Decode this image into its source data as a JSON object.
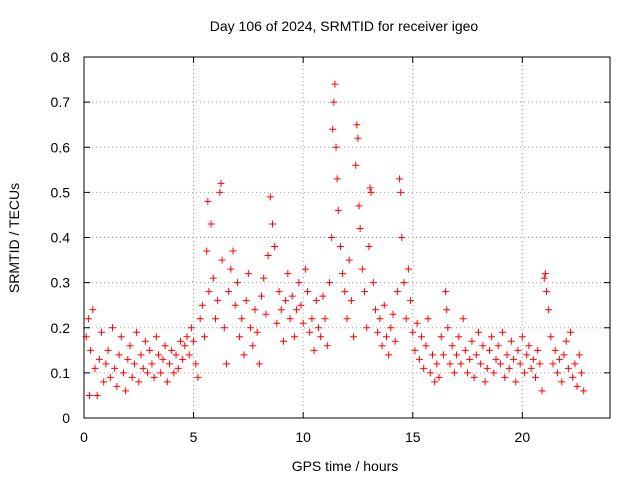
{
  "chart_data": {
    "type": "scatter",
    "title": "Day 106 of 2024, SRMTID for receiver igeo",
    "xlabel": "GPS time / hours",
    "ylabel": "SRMTID / TECUs",
    "xlim": [
      0,
      24
    ],
    "ylim": [
      0,
      0.8
    ],
    "xticks": [
      0,
      5,
      10,
      15,
      20
    ],
    "xtick_labels": [
      "0",
      "5",
      "10",
      "15",
      "20"
    ],
    "yticks": [
      0,
      0.1,
      0.2,
      0.3,
      0.4,
      0.5,
      0.6,
      0.7,
      0.8
    ],
    "ytick_labels": [
      "0",
      "0.1",
      "0.2",
      "0.3",
      "0.4",
      "0.5",
      "0.6",
      "0.7",
      "0.8"
    ],
    "grid": true,
    "marker": "+",
    "color": "#ff0000",
    "series": [
      {
        "name": "SRMTID",
        "points": [
          [
            0.1,
            0.18
          ],
          [
            0.2,
            0.22
          ],
          [
            0.25,
            0.05
          ],
          [
            0.3,
            0.15
          ],
          [
            0.4,
            0.24
          ],
          [
            0.5,
            0.11
          ],
          [
            0.6,
            0.05
          ],
          [
            0.7,
            0.13
          ],
          [
            0.8,
            0.19
          ],
          [
            0.9,
            0.08
          ],
          [
            1.0,
            0.12
          ],
          [
            1.1,
            0.15
          ],
          [
            1.2,
            0.09
          ],
          [
            1.3,
            0.2
          ],
          [
            1.4,
            0.11
          ],
          [
            1.5,
            0.07
          ],
          [
            1.6,
            0.14
          ],
          [
            1.7,
            0.18
          ],
          [
            1.8,
            0.1
          ],
          [
            1.9,
            0.06
          ],
          [
            2.0,
            0.13
          ],
          [
            2.1,
            0.16
          ],
          [
            2.2,
            0.09
          ],
          [
            2.3,
            0.12
          ],
          [
            2.4,
            0.19
          ],
          [
            2.5,
            0.08
          ],
          [
            2.6,
            0.14
          ],
          [
            2.7,
            0.11
          ],
          [
            2.8,
            0.17
          ],
          [
            2.9,
            0.1
          ],
          [
            3.0,
            0.15
          ],
          [
            3.1,
            0.12
          ],
          [
            3.2,
            0.09
          ],
          [
            3.3,
            0.18
          ],
          [
            3.4,
            0.14
          ],
          [
            3.5,
            0.1
          ],
          [
            3.6,
            0.13
          ],
          [
            3.7,
            0.16
          ],
          [
            3.8,
            0.08
          ],
          [
            3.9,
            0.12
          ],
          [
            4.0,
            0.15
          ],
          [
            4.1,
            0.1
          ],
          [
            4.2,
            0.14
          ],
          [
            4.3,
            0.11
          ],
          [
            4.4,
            0.17
          ],
          [
            4.5,
            0.13
          ],
          [
            4.6,
            0.16
          ],
          [
            4.7,
            0.18
          ],
          [
            4.8,
            0.14
          ],
          [
            4.9,
            0.2
          ],
          [
            5.0,
            0.17
          ],
          [
            5.1,
            0.12
          ],
          [
            5.2,
            0.09
          ],
          [
            5.3,
            0.22
          ],
          [
            5.4,
            0.25
          ],
          [
            5.5,
            0.18
          ],
          [
            5.6,
            0.37
          ],
          [
            5.65,
            0.48
          ],
          [
            5.7,
            0.28
          ],
          [
            5.8,
            0.43
          ],
          [
            5.9,
            0.31
          ],
          [
            6.0,
            0.22
          ],
          [
            6.1,
            0.26
          ],
          [
            6.2,
            0.5
          ],
          [
            6.25,
            0.52
          ],
          [
            6.3,
            0.35
          ],
          [
            6.4,
            0.2
          ],
          [
            6.5,
            0.12
          ],
          [
            6.6,
            0.28
          ],
          [
            6.7,
            0.33
          ],
          [
            6.8,
            0.37
          ],
          [
            6.9,
            0.25
          ],
          [
            7.0,
            0.3
          ],
          [
            7.1,
            0.18
          ],
          [
            7.2,
            0.22
          ],
          [
            7.3,
            0.14
          ],
          [
            7.4,
            0.26
          ],
          [
            7.5,
            0.32
          ],
          [
            7.6,
            0.2
          ],
          [
            7.7,
            0.16
          ],
          [
            7.8,
            0.24
          ],
          [
            7.9,
            0.19
          ],
          [
            8.0,
            0.12
          ],
          [
            8.1,
            0.27
          ],
          [
            8.2,
            0.31
          ],
          [
            8.3,
            0.23
          ],
          [
            8.4,
            0.36
          ],
          [
            8.5,
            0.49
          ],
          [
            8.6,
            0.43
          ],
          [
            8.7,
            0.38
          ],
          [
            8.8,
            0.21
          ],
          [
            8.9,
            0.28
          ],
          [
            9.0,
            0.24
          ],
          [
            9.1,
            0.17
          ],
          [
            9.2,
            0.26
          ],
          [
            9.3,
            0.32
          ],
          [
            9.4,
            0.22
          ],
          [
            9.5,
            0.27
          ],
          [
            9.6,
            0.18
          ],
          [
            9.7,
            0.24
          ],
          [
            9.8,
            0.3
          ],
          [
            9.9,
            0.25
          ],
          [
            10.0,
            0.21
          ],
          [
            10.1,
            0.33
          ],
          [
            10.2,
            0.28
          ],
          [
            10.3,
            0.19
          ],
          [
            10.4,
            0.22
          ],
          [
            10.5,
            0.15
          ],
          [
            10.6,
            0.26
          ],
          [
            10.7,
            0.2
          ],
          [
            10.8,
            0.18
          ],
          [
            10.9,
            0.27
          ],
          [
            11.0,
            0.22
          ],
          [
            11.1,
            0.16
          ],
          [
            11.2,
            0.3
          ],
          [
            11.3,
            0.4
          ],
          [
            11.35,
            0.64
          ],
          [
            11.4,
            0.7
          ],
          [
            11.45,
            0.74
          ],
          [
            11.5,
            0.6
          ],
          [
            11.55,
            0.53
          ],
          [
            11.6,
            0.46
          ],
          [
            11.7,
            0.38
          ],
          [
            11.8,
            0.32
          ],
          [
            11.9,
            0.28
          ],
          [
            12.0,
            0.22
          ],
          [
            12.1,
            0.35
          ],
          [
            12.2,
            0.26
          ],
          [
            12.3,
            0.18
          ],
          [
            12.4,
            0.56
          ],
          [
            12.45,
            0.65
          ],
          [
            12.5,
            0.62
          ],
          [
            12.55,
            0.47
          ],
          [
            12.6,
            0.42
          ],
          [
            12.7,
            0.33
          ],
          [
            12.8,
            0.28
          ],
          [
            12.9,
            0.2
          ],
          [
            13.0,
            0.38
          ],
          [
            13.05,
            0.51
          ],
          [
            13.1,
            0.5
          ],
          [
            13.2,
            0.3
          ],
          [
            13.3,
            0.24
          ],
          [
            13.4,
            0.19
          ],
          [
            13.5,
            0.22
          ],
          [
            13.6,
            0.16
          ],
          [
            13.7,
            0.25
          ],
          [
            13.8,
            0.18
          ],
          [
            13.9,
            0.14
          ],
          [
            14.0,
            0.2
          ],
          [
            14.1,
            0.23
          ],
          [
            14.2,
            0.17
          ],
          [
            14.3,
            0.28
          ],
          [
            14.4,
            0.53
          ],
          [
            14.45,
            0.5
          ],
          [
            14.5,
            0.4
          ],
          [
            14.6,
            0.3
          ],
          [
            14.7,
            0.22
          ],
          [
            14.8,
            0.33
          ],
          [
            14.9,
            0.26
          ],
          [
            15.0,
            0.19
          ],
          [
            15.1,
            0.15
          ],
          [
            15.2,
            0.21
          ],
          [
            15.3,
            0.13
          ],
          [
            15.4,
            0.18
          ],
          [
            15.5,
            0.11
          ],
          [
            15.6,
            0.16
          ],
          [
            15.7,
            0.22
          ],
          [
            15.8,
            0.1
          ],
          [
            15.9,
            0.14
          ],
          [
            16.0,
            0.08
          ],
          [
            16.1,
            0.12
          ],
          [
            16.2,
            0.09
          ],
          [
            16.3,
            0.18
          ],
          [
            16.4,
            0.14
          ],
          [
            16.5,
            0.28
          ],
          [
            16.55,
            0.24
          ],
          [
            16.6,
            0.2
          ],
          [
            16.7,
            0.12
          ],
          [
            16.8,
            0.16
          ],
          [
            16.9,
            0.1
          ],
          [
            17.0,
            0.14
          ],
          [
            17.1,
            0.18
          ],
          [
            17.2,
            0.12
          ],
          [
            17.3,
            0.22
          ],
          [
            17.4,
            0.15
          ],
          [
            17.5,
            0.1
          ],
          [
            17.6,
            0.13
          ],
          [
            17.7,
            0.17
          ],
          [
            17.8,
            0.09
          ],
          [
            17.9,
            0.14
          ],
          [
            18.0,
            0.19
          ],
          [
            18.1,
            0.12
          ],
          [
            18.2,
            0.16
          ],
          [
            18.3,
            0.08
          ],
          [
            18.4,
            0.11
          ],
          [
            18.5,
            0.15
          ],
          [
            18.6,
            0.18
          ],
          [
            18.7,
            0.1
          ],
          [
            18.8,
            0.13
          ],
          [
            18.9,
            0.16
          ],
          [
            19.0,
            0.12
          ],
          [
            19.1,
            0.19
          ],
          [
            19.2,
            0.09
          ],
          [
            19.3,
            0.14
          ],
          [
            19.4,
            0.11
          ],
          [
            19.5,
            0.17
          ],
          [
            19.6,
            0.13
          ],
          [
            19.7,
            0.08
          ],
          [
            19.8,
            0.15
          ],
          [
            19.9,
            0.12
          ],
          [
            20.0,
            0.18
          ],
          [
            20.1,
            0.1
          ],
          [
            20.2,
            0.14
          ],
          [
            20.3,
            0.16
          ],
          [
            20.4,
            0.11
          ],
          [
            20.5,
            0.13
          ],
          [
            20.6,
            0.09
          ],
          [
            20.7,
            0.15
          ],
          [
            20.8,
            0.12
          ],
          [
            20.9,
            0.06
          ],
          [
            21.0,
            0.31
          ],
          [
            21.05,
            0.32
          ],
          [
            21.1,
            0.28
          ],
          [
            21.2,
            0.24
          ],
          [
            21.3,
            0.18
          ],
          [
            21.4,
            0.12
          ],
          [
            21.5,
            0.15
          ],
          [
            21.6,
            0.1
          ],
          [
            21.7,
            0.13
          ],
          [
            21.8,
            0.08
          ],
          [
            21.9,
            0.14
          ],
          [
            22.0,
            0.17
          ],
          [
            22.1,
            0.11
          ],
          [
            22.2,
            0.19
          ],
          [
            22.3,
            0.09
          ],
          [
            22.4,
            0.12
          ],
          [
            22.5,
            0.07
          ],
          [
            22.6,
            0.14
          ],
          [
            22.7,
            0.1
          ],
          [
            22.8,
            0.06
          ]
        ]
      }
    ]
  }
}
